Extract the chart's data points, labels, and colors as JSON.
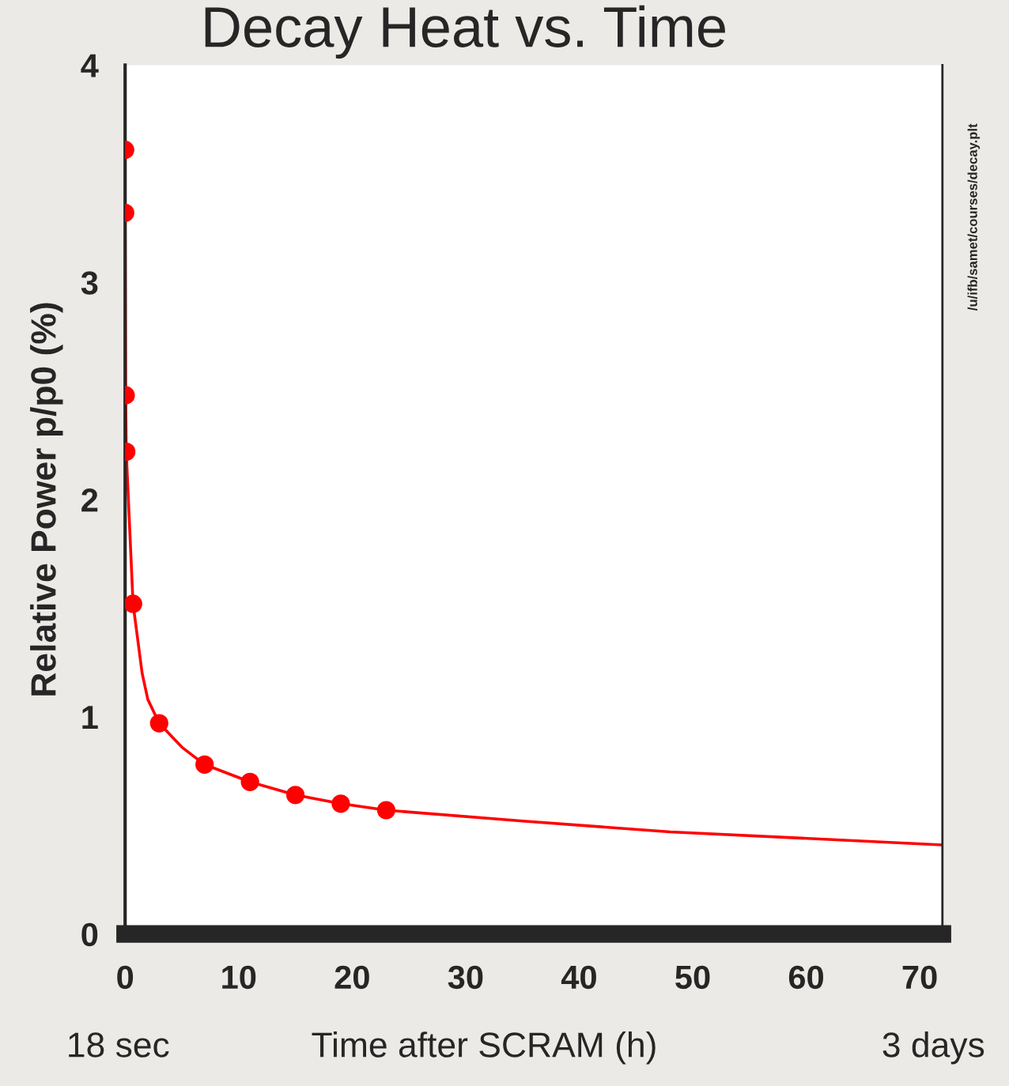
{
  "chart_data": {
    "type": "line",
    "title": "Decay Heat vs. Time",
    "xlabel": "Time after SCRAM (h)",
    "ylabel": "Relative Power p/p0 (%)",
    "annotations": [
      "18 sec",
      "3 days",
      "/u/ifb/samet/courses/decay.plt"
    ],
    "xlim": [
      0,
      72
    ],
    "xticks": [
      0,
      10,
      20,
      30,
      40,
      50,
      60,
      70
    ],
    "ylim": [
      0,
      4
    ],
    "yticks": [
      0,
      1,
      2,
      3,
      4
    ],
    "grid": false,
    "legend": false,
    "series": [
      {
        "color": "#ff0000",
        "marker": "none",
        "line_style": "solid",
        "x": [
          0,
          0,
          0.05,
          0.1,
          0.7,
          1.5,
          2,
          3,
          5,
          7,
          11,
          15,
          19,
          23,
          35,
          48,
          72
        ],
        "values": [
          3.61,
          3.32,
          2.48,
          2.22,
          1.52,
          1.2,
          1.08,
          0.97,
          0.86,
          0.78,
          0.7,
          0.64,
          0.6,
          0.57,
          0.52,
          0.47,
          0.41
        ]
      },
      {
        "type": "scatter",
        "color": "#ff0000",
        "marker": "circle",
        "x": [
          0,
          0,
          0.05,
          0.1,
          0.7,
          3,
          7,
          11,
          15,
          19,
          23
        ],
        "values": [
          3.61,
          3.32,
          2.48,
          2.22,
          1.52,
          0.97,
          0.78,
          0.7,
          0.64,
          0.6,
          0.57
        ]
      }
    ]
  }
}
